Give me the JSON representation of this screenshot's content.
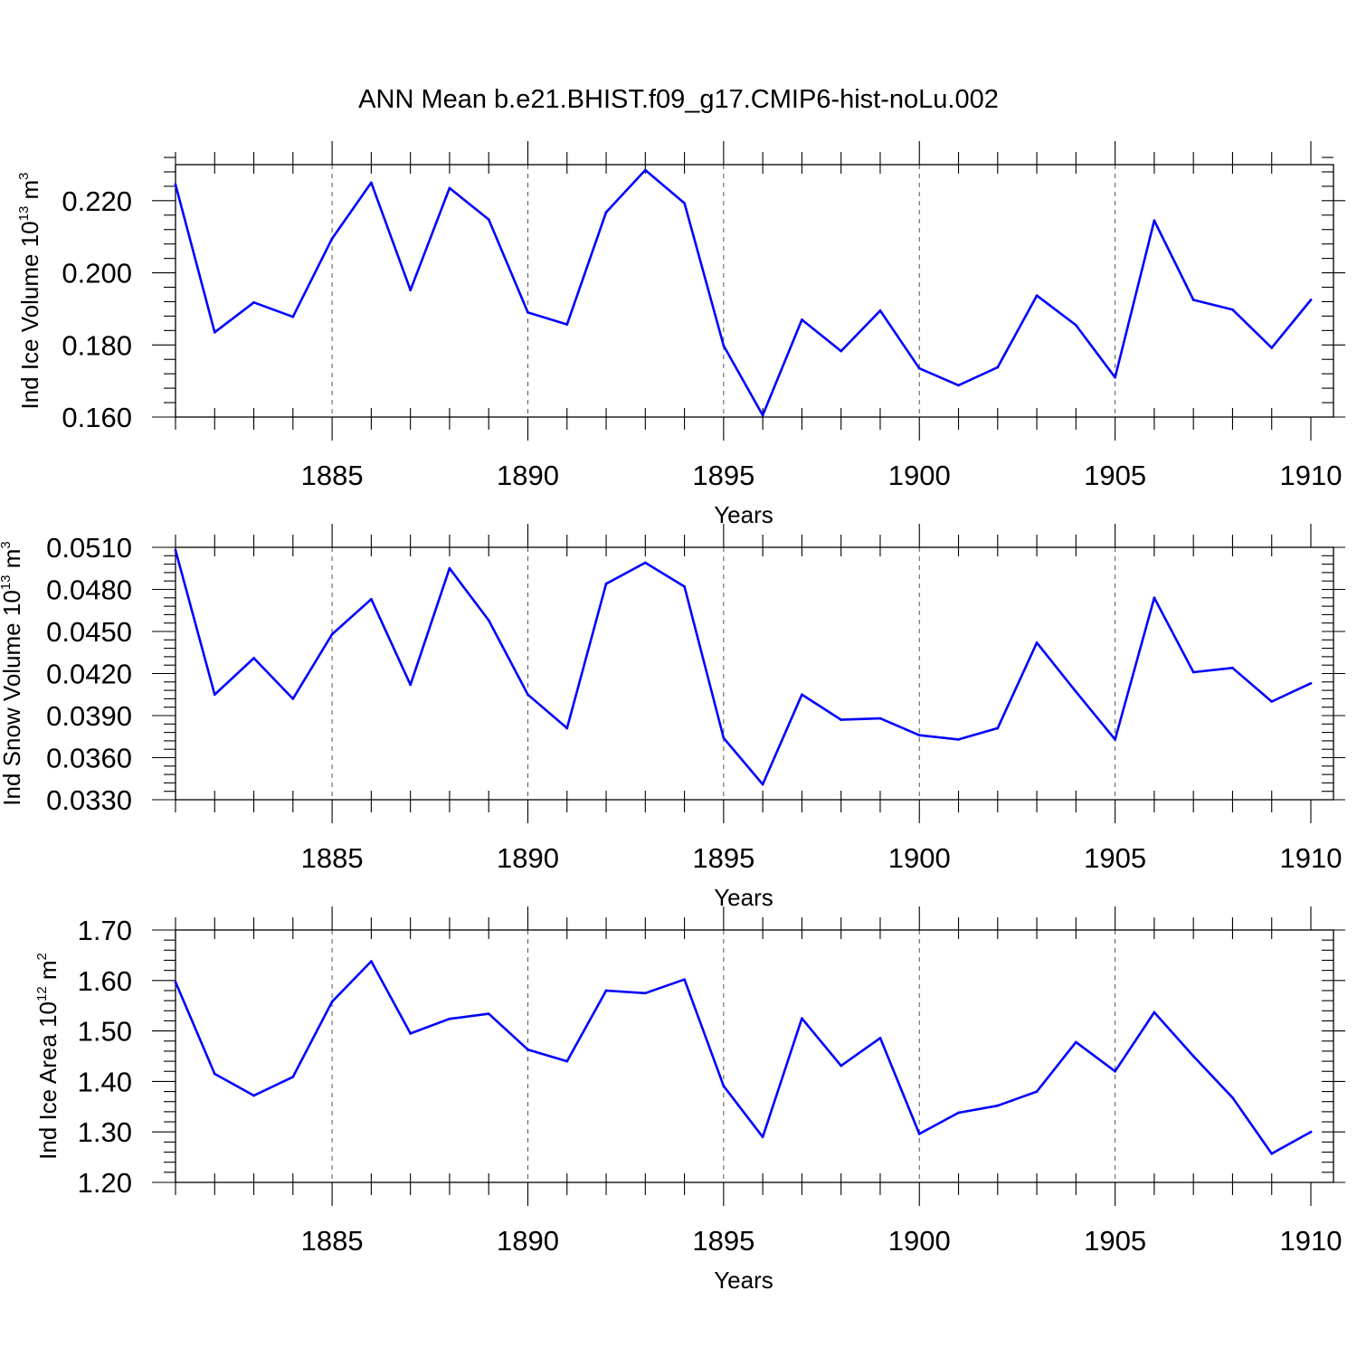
{
  "figure_title": "ANN Mean b.e21.BHIST.f09_g17.CMIP6-hist-noLu.002",
  "colors": {
    "series": "#0000ff",
    "axes": "#000000",
    "grid": "#555555",
    "background": "#ffffff"
  },
  "chart_data": [
    {
      "type": "line",
      "title": "ANN Mean b.e21.BHIST.f09_g17.CMIP6-hist-noLu.002",
      "xlabel": "Years",
      "ylabel": {
        "prefix": "Ind Ice Volume 10",
        "exponent": "13",
        "unit": " m",
        "unit_exponent": "3"
      },
      "x": [
        1881,
        1882,
        1883,
        1884,
        1885,
        1886,
        1887,
        1888,
        1889,
        1890,
        1891,
        1892,
        1893,
        1894,
        1895,
        1896,
        1897,
        1898,
        1899,
        1900,
        1901,
        1902,
        1903,
        1904,
        1905,
        1906,
        1907,
        1908,
        1909,
        1910
      ],
      "values": [
        0.2245,
        0.1835,
        0.1918,
        0.1878,
        0.2095,
        0.225,
        0.1952,
        0.2235,
        0.2148,
        0.189,
        0.1857,
        0.2168,
        0.2285,
        0.2193,
        0.1798,
        0.1605,
        0.187,
        0.1783,
        0.1895,
        0.1735,
        0.1688,
        0.1738,
        0.1937,
        0.1855,
        0.171,
        0.2145,
        0.1925,
        0.1898,
        0.1792,
        0.1925
      ],
      "xlim": [
        1881,
        1910
      ],
      "ylim": [
        0.16,
        0.23
      ],
      "ytick_labels": [
        "0.160",
        "0.180",
        "0.200",
        "0.220"
      ],
      "xtick_labels": [
        "1885",
        "1890",
        "1895",
        "1900",
        "1905",
        "1910"
      ],
      "grid": "vertical-dashed"
    },
    {
      "type": "line",
      "xlabel": "Years",
      "ylabel": {
        "prefix": "Ind Snow Volume 10",
        "exponent": "13",
        "unit": " m",
        "unit_exponent": "3"
      },
      "x": [
        1881,
        1882,
        1883,
        1884,
        1885,
        1886,
        1887,
        1888,
        1889,
        1890,
        1891,
        1892,
        1893,
        1894,
        1895,
        1896,
        1897,
        1898,
        1899,
        1900,
        1901,
        1902,
        1903,
        1904,
        1905,
        1906,
        1907,
        1908,
        1909,
        1910
      ],
      "values": [
        0.0508,
        0.0405,
        0.0431,
        0.0402,
        0.0448,
        0.0473,
        0.0412,
        0.0495,
        0.0458,
        0.0405,
        0.0381,
        0.0484,
        0.0499,
        0.0482,
        0.0374,
        0.0341,
        0.0405,
        0.0387,
        0.0388,
        0.0376,
        0.0373,
        0.0381,
        0.0442,
        0.0407,
        0.0373,
        0.0474,
        0.0421,
        0.0424,
        0.04,
        0.0413
      ],
      "xlim": [
        1881,
        1910
      ],
      "ylim": [
        0.033,
        0.051
      ],
      "ytick_labels": [
        "0.0330",
        "0.0360",
        "0.0390",
        "0.0420",
        "0.0450",
        "0.0480",
        "0.0510"
      ],
      "xtick_labels": [
        "1885",
        "1890",
        "1895",
        "1900",
        "1905",
        "1910"
      ],
      "grid": "vertical-dashed"
    },
    {
      "type": "line",
      "xlabel": "Years",
      "ylabel": {
        "prefix": "Ind Ice Area 10",
        "exponent": "12",
        "unit": " m",
        "unit_exponent": "2"
      },
      "x": [
        1881,
        1882,
        1883,
        1884,
        1885,
        1886,
        1887,
        1888,
        1889,
        1890,
        1891,
        1892,
        1893,
        1894,
        1895,
        1896,
        1897,
        1898,
        1899,
        1900,
        1901,
        1902,
        1903,
        1904,
        1905,
        1906,
        1907,
        1908,
        1909,
        1910
      ],
      "values": [
        1.597,
        1.415,
        1.372,
        1.409,
        1.558,
        1.638,
        1.495,
        1.524,
        1.534,
        1.463,
        1.44,
        1.58,
        1.575,
        1.602,
        1.391,
        1.29,
        1.525,
        1.431,
        1.486,
        1.296,
        1.338,
        1.352,
        1.38,
        1.478,
        1.42,
        1.537,
        1.45,
        1.368,
        1.257,
        1.3
      ],
      "xlim": [
        1881,
        1910
      ],
      "ylim": [
        1.2,
        1.7
      ],
      "ytick_labels": [
        "1.20",
        "1.30",
        "1.40",
        "1.50",
        "1.60",
        "1.70"
      ],
      "xtick_labels": [
        "1885",
        "1890",
        "1895",
        "1900",
        "1905",
        "1910"
      ],
      "grid": "vertical-dashed"
    }
  ]
}
